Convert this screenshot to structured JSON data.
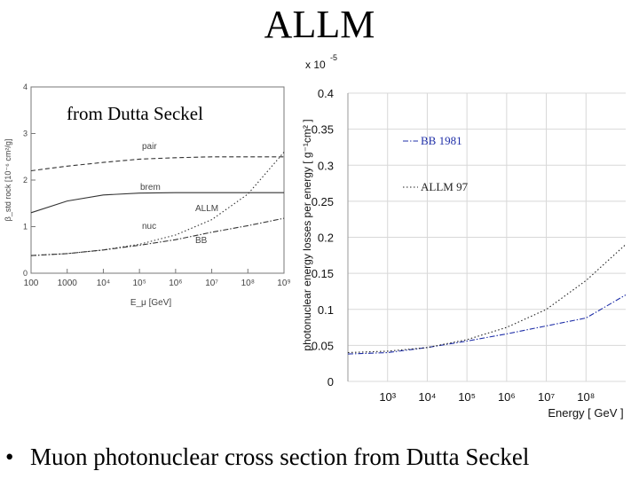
{
  "slide": {
    "title": "ALLM",
    "bullet": "Muon photonuclear cross section from Dutta Seckel",
    "bullet_symbol": "•"
  },
  "chart_data": [
    {
      "type": "line",
      "annotation": "from Dutta Seckel",
      "xlabel": "E_μ [GeV]",
      "ylabel": "β_std rock [10⁻⁶ cm²/g]",
      "x_scale": "log",
      "xlim": [
        100,
        1000000000
      ],
      "ylim": [
        0,
        4
      ],
      "x_tick_labels": [
        "100",
        "1000",
        "10⁴",
        "10⁵",
        "10⁶",
        "10⁷",
        "10⁸",
        "10⁹"
      ],
      "y_tick_labels": [
        "0",
        "1",
        "2",
        "3",
        "4"
      ],
      "grid": false,
      "curve_labels": [
        "pair",
        "brem",
        "nuc",
        "ALLM",
        "BB"
      ],
      "series": [
        {
          "name": "pair",
          "style": "dashed",
          "x": [
            100,
            1000,
            10000,
            100000,
            1000000,
            10000000,
            100000000,
            1000000000
          ],
          "values": [
            2.2,
            2.3,
            2.38,
            2.45,
            2.48,
            2.5,
            2.5,
            2.5
          ]
        },
        {
          "name": "brem",
          "style": "solid",
          "x": [
            100,
            1000,
            10000,
            100000,
            1000000,
            10000000,
            100000000,
            1000000000
          ],
          "values": [
            1.3,
            1.55,
            1.68,
            1.72,
            1.73,
            1.73,
            1.73,
            1.73
          ]
        },
        {
          "name": "ALLM",
          "style": "dotted",
          "x": [
            100,
            1000,
            10000,
            100000,
            1000000,
            10000000,
            100000000,
            1000000000
          ],
          "values": [
            0.38,
            0.42,
            0.5,
            0.62,
            0.82,
            1.15,
            1.7,
            2.6
          ]
        },
        {
          "name": "BB",
          "style": "dash-dot",
          "x": [
            100,
            1000,
            10000,
            100000,
            1000000,
            10000000,
            100000000,
            1000000000
          ],
          "values": [
            0.38,
            0.42,
            0.5,
            0.6,
            0.72,
            0.88,
            1.02,
            1.18
          ]
        }
      ]
    },
    {
      "type": "line",
      "multiplier": "x 10",
      "multiplier_exponent": "-5",
      "xlabel": "Energy [ GeV ]",
      "ylabel": "photonuclear energy losses per energy [ g⁻¹cm² ]",
      "x_scale": "log",
      "xlim": [
        100,
        1000000000
      ],
      "ylim": [
        0,
        0.4
      ],
      "x_tick_labels": [
        "10³",
        "10⁴",
        "10⁵",
        "10⁶",
        "10⁷",
        "10⁸"
      ],
      "y_tick_labels": [
        "0",
        "0.05",
        "0.1",
        "0.15",
        "0.2",
        "0.25",
        "0.3",
        "0.35",
        "0.4"
      ],
      "grid": true,
      "legend": "top-right",
      "series": [
        {
          "name": "BB 1981",
          "color": "#1f2fa8",
          "style": "dash-dot",
          "x": [
            100,
            1000,
            10000,
            100000,
            1000000,
            10000000,
            100000000,
            1000000000
          ],
          "values": [
            0.038,
            0.04,
            0.047,
            0.056,
            0.066,
            0.077,
            0.088,
            0.12
          ]
        },
        {
          "name": "ALLM 97",
          "color": "#222222",
          "style": "dotted",
          "x": [
            100,
            1000,
            10000,
            100000,
            1000000,
            10000000,
            100000000,
            1000000000
          ],
          "values": [
            0.04,
            0.042,
            0.047,
            0.058,
            0.075,
            0.1,
            0.14,
            0.19
          ]
        }
      ]
    }
  ]
}
